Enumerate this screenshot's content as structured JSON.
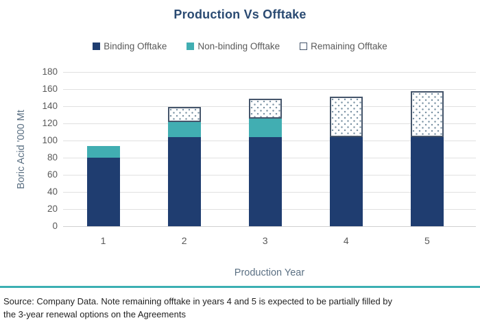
{
  "chart": {
    "source_line1": "Source: Company Data. Note remaining offtake in years 4 and 5 is expected to be partially filled by",
    "source_line2": "the 3-year renewal options on the Agreements"
  },
  "chart_data": {
    "type": "bar",
    "stacked": true,
    "title": "Production Vs Offtake",
    "xlabel": "Production Year",
    "ylabel": "Boric Acid '000 Mt",
    "categories": [
      "1",
      "2",
      "3",
      "4",
      "5"
    ],
    "series": [
      {
        "name": "Binding Offtake",
        "color": "#1F3D70",
        "fill": "solid",
        "values": [
          80,
          104,
          104,
          104,
          104
        ]
      },
      {
        "name": "Non-binding Offtake",
        "color": "#41AEB2",
        "fill": "solid",
        "values": [
          14,
          18,
          22,
          0,
          0
        ]
      },
      {
        "name": "Remaining Offtake",
        "color": "#FFFFFF",
        "fill": "dots",
        "border": "#44546A",
        "values": [
          0,
          17,
          23,
          47,
          54
        ]
      }
    ],
    "stack_totals": [
      94,
      139,
      149,
      151,
      158
    ],
    "ylim": [
      0,
      180
    ],
    "ytick_step": 20,
    "grid": true,
    "legend_position": "top",
    "colors": {
      "title": "#2A4A72",
      "axis_text": "#595959",
      "axis_title_text": "#5B7083",
      "gridline": "#E0E0E0",
      "divider": "#3BAFB2",
      "dot_pattern": "#7C93A4"
    }
  }
}
